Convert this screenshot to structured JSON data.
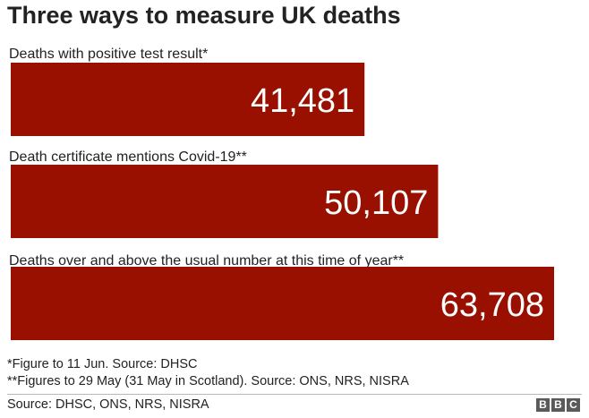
{
  "chart_data": {
    "type": "bar",
    "orientation": "horizontal",
    "title": "Three ways to measure UK deaths",
    "categories": [
      "Deaths with positive test result*",
      "Death certificate mentions Covid-19**",
      "Deaths over and above the usual number at this time of year**"
    ],
    "values": [
      41481,
      50107,
      63708
    ],
    "value_labels": [
      "41,481",
      "50,107",
      "63,708"
    ],
    "bar_color": "#990f00",
    "value_label_color": "#ffffff",
    "grid": false
  },
  "footnotes": [
    "*Figure to 11 Jun. Source: DHSC",
    "**Figures to 29 May (31 May in Scotland). Source: ONS, NRS, NISRA"
  ],
  "source": "Source: DHSC, ONS, NRS, NISRA",
  "logo": {
    "letters": [
      "B",
      "B",
      "C"
    ],
    "color": "#5a5a5a"
  }
}
